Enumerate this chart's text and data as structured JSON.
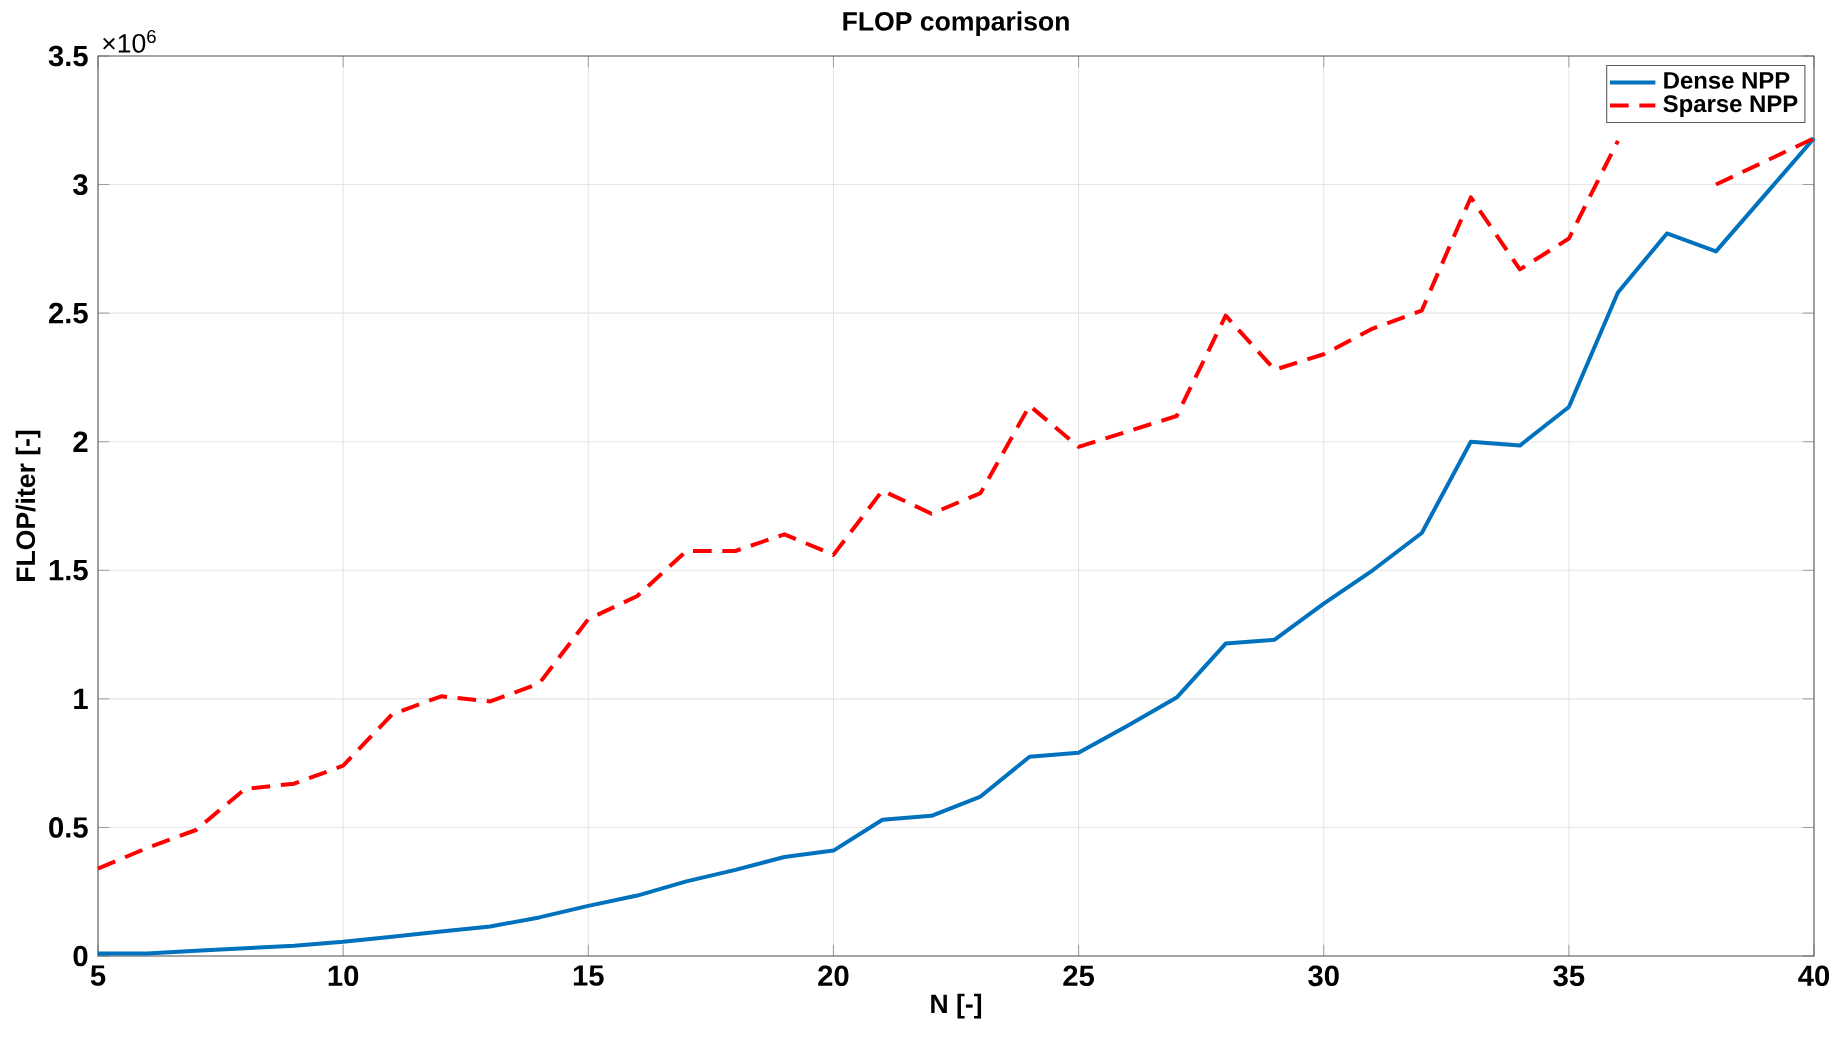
{
  "chart_data": {
    "type": "line",
    "title": "FLOP comparison",
    "xlabel": "N [-]",
    "ylabel": "FLOP/iter [-]",
    "annotations": [
      "×10$^{6}$"
    ],
    "x": [
      5,
      6,
      7,
      8,
      9,
      10,
      11,
      12,
      13,
      14,
      15,
      16,
      17,
      18,
      19,
      20,
      21,
      22,
      23,
      24,
      25,
      26,
      27,
      28,
      29,
      30,
      31,
      32,
      33,
      34,
      35,
      36,
      37,
      38,
      39,
      40
    ],
    "series": [
      {
        "name": "Dense NPP",
        "color": "#0072bd",
        "line_style": "solid",
        "values": [
          0.01,
          0.01,
          0.02,
          0.03,
          0.04,
          0.055,
          0.075,
          0.095,
          0.115,
          0.15,
          0.195,
          0.235,
          0.29,
          0.335,
          0.385,
          0.41,
          0.53,
          0.545,
          0.62,
          0.775,
          0.79,
          0.895,
          1.005,
          1.215,
          1.23,
          1.37,
          1.5,
          1.645,
          2.0,
          1.985,
          2.135,
          2.58,
          2.81,
          2.74,
          2.96,
          3.18
        ]
      },
      {
        "name": "Sparse NPP",
        "color": "#ff0000",
        "line_style": "dashed",
        "values": [
          0.34,
          0.42,
          0.49,
          0.65,
          0.67,
          0.74,
          0.94,
          1.01,
          0.99,
          1.06,
          1.31,
          1.4,
          1.575,
          1.575,
          1.64,
          1.56,
          1.81,
          1.72,
          1.8,
          2.14,
          1.98,
          2.04,
          2.1,
          2.49,
          2.28,
          2.34,
          2.44,
          2.51,
          2.95,
          2.67,
          2.79,
          3.17,
          null,
          3.0,
          3.09,
          3.18
        ]
      }
    ],
    "xlim": [
      5,
      40
    ],
    "ylim": [
      0,
      3.5
    ],
    "xticks": [
      5,
      10,
      15,
      20,
      25,
      30,
      35,
      40
    ],
    "yticks": [
      0,
      0.5,
      1,
      1.5,
      2,
      2.5,
      3,
      3.5
    ],
    "grid": true,
    "legend": "top right",
    "marker": "none"
  }
}
